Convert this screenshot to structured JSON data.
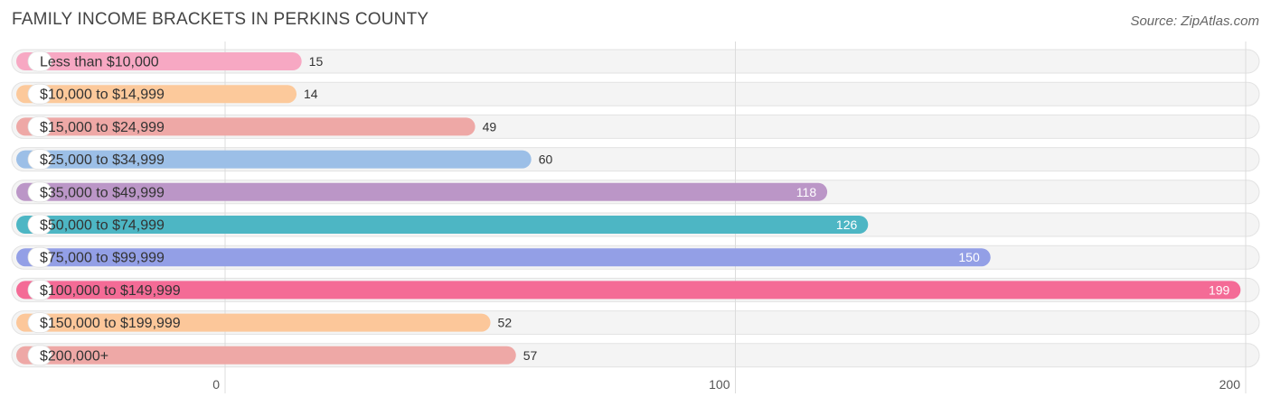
{
  "chart_data": {
    "type": "bar",
    "orientation": "horizontal",
    "title": "FAMILY INCOME BRACKETS IN PERKINS COUNTY",
    "source": "Source: ZipAtlas.com",
    "xlabel": "",
    "ylabel": "",
    "xlim": [
      0,
      200
    ],
    "ticks": [
      0,
      100,
      200
    ],
    "tick_labels": [
      "0",
      "100",
      "200"
    ],
    "grid": true,
    "categories": [
      "Less than $10,000",
      "$10,000 to $14,999",
      "$15,000 to $24,999",
      "$25,000 to $34,999",
      "$35,000 to $49,999",
      "$50,000 to $74,999",
      "$75,000 to $99,999",
      "$100,000 to $149,999",
      "$150,000 to $199,999",
      "$200,000+"
    ],
    "values": [
      15,
      14,
      49,
      60,
      118,
      126,
      150,
      199,
      52,
      57
    ],
    "value_labels": [
      "15",
      "14",
      "49",
      "60",
      "118",
      "126",
      "150",
      "199",
      "52",
      "57"
    ],
    "colors": [
      "#f7a8c3",
      "#fcc99b",
      "#eea8a6",
      "#9cbfe7",
      "#bb96c7",
      "#4db6c4",
      "#939fe6",
      "#f46b96",
      "#fcc79a",
      "#eea8a6"
    ]
  }
}
